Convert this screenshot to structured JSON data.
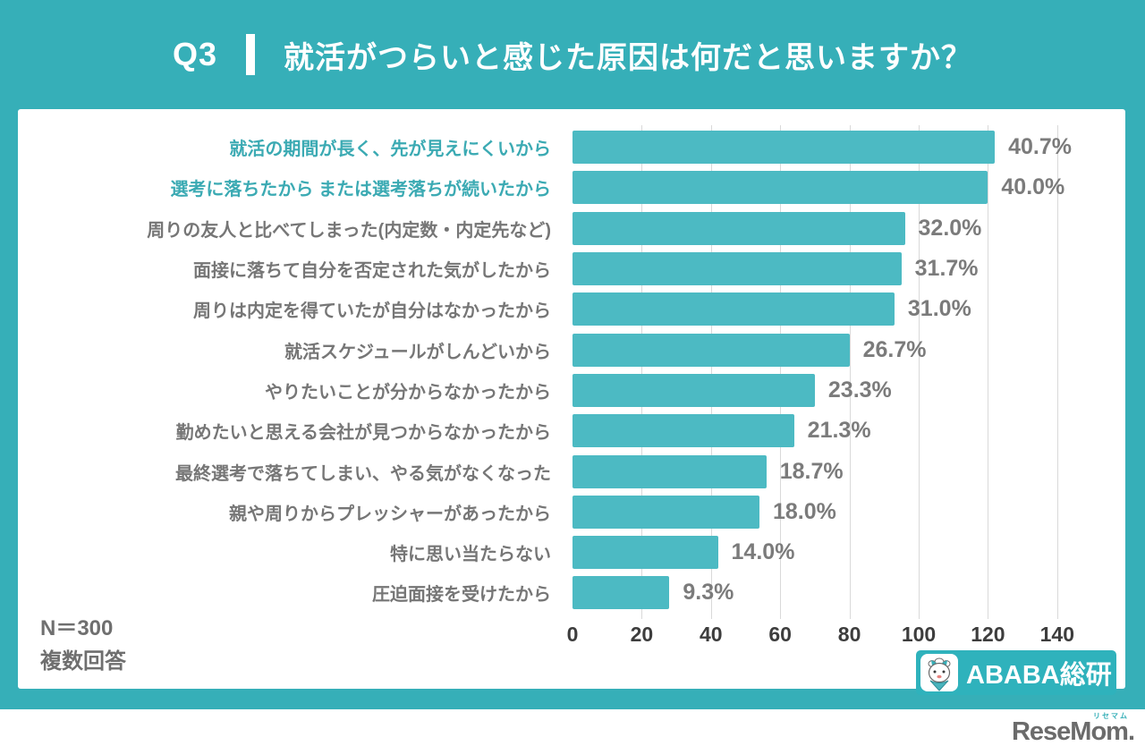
{
  "header": {
    "q_label": "Q3",
    "title": "就活がつらいと感じた原因は何だと思いますか？"
  },
  "chart_data": {
    "type": "bar",
    "orientation": "horizontal",
    "title": "就活がつらいと感じた原因は何だと思いますか？",
    "categories": [
      "就活の期間が長く、先が見えにくいから",
      "選考に落ちたから または選考落ちが続いたから",
      "周りの友人と比べてしまった(内定数・内定先など)",
      "面接に落ちて自分を否定された気がしたから",
      "周りは内定を得ていたが自分はなかったから",
      "就活スケジュールがしんどいから",
      "やりたいことが分からなかったから",
      "勤めたいと思える会社が見つからなかったから",
      "最終選考で落ちてしまい、やる気がなくなった",
      "親や周りからプレッシャーがあったから",
      "特に思い当たらない",
      "圧迫面接を受けたから"
    ],
    "values_pct": [
      40.7,
      40.0,
      32.0,
      31.7,
      31.0,
      26.7,
      23.3,
      21.3,
      18.7,
      18.0,
      14.0,
      9.3
    ],
    "value_labels": [
      "40.7%",
      "40.0%",
      "32.0%",
      "31.7%",
      "31.0%",
      "26.7%",
      "23.3%",
      "21.3%",
      "18.7%",
      "18.0%",
      "14.0%",
      "9.3%"
    ],
    "values_axis_counts": [
      122,
      120,
      96,
      95,
      93,
      80,
      70,
      64,
      56,
      54,
      42,
      28
    ],
    "x_ticks": [
      0,
      20,
      40,
      60,
      80,
      100,
      120,
      140
    ],
    "xlim": [
      0,
      160
    ],
    "grid": true,
    "legend": false,
    "xlabel": "",
    "ylabel": "",
    "highlight_indices": [
      0,
      1
    ],
    "bar_color": "#4cbac3",
    "highlight_label_color": "#3baab3",
    "label_color": "#767676"
  },
  "footnote": {
    "n_label": "N＝300",
    "answer_type": "複数回答"
  },
  "logos": {
    "ababa": "ABABA総研",
    "resemom": "ReseMom.",
    "resemom_small": "リセマム"
  },
  "colors": {
    "background_teal": "#36afb8",
    "bar_teal": "#4cbac3",
    "panel_white": "#ffffff",
    "value_text_gray": "#7b7b7b",
    "axis_text": "#3d3d3d"
  }
}
